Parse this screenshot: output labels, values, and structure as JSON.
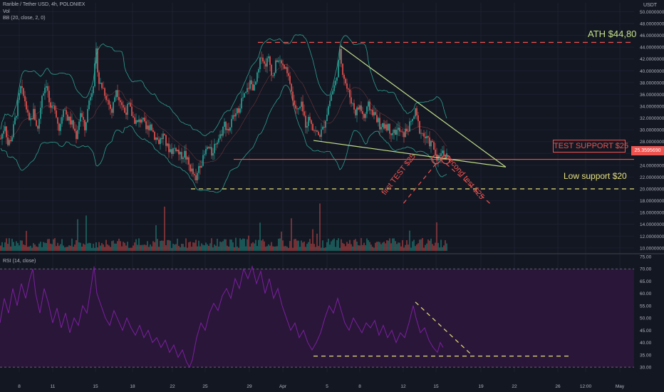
{
  "header": {
    "symbol_line": "Rarible / Tether USD, 4h, POLONIEX",
    "vol_label": "Vol",
    "bb_label": "BB (20, close, 2, 0)",
    "rsi_label": "RSI (14, close)",
    "currency": "USDT"
  },
  "annotations": {
    "ath": "ATH $44,80",
    "test_support": "TEST SUPPORT $25",
    "low_support": "Low support $20",
    "first_test": "first TEST $25",
    "second_test": "second test $25"
  },
  "price_badge": "25.3595690",
  "colors": {
    "background": "#131722",
    "up": "#26a69a",
    "down": "#ef5350",
    "bands": "#2e9e8f",
    "resistance": "#ef5350",
    "support_yellow": "#e6e07a",
    "trendline": "#c4e08a",
    "rsi_line": "#7b1fa2",
    "rsi_fill": "#2a1638"
  },
  "chart_data": [
    {
      "type": "candlestick",
      "title": "Rarible / Tether USD, 4h, POLONIEX",
      "x_ticks": [
        "8",
        "11",
        "15",
        "18",
        "22",
        "25",
        "29",
        "Apr",
        "5",
        "8",
        "12",
        "15",
        "19",
        "22",
        "26",
        "12:00",
        "May"
      ],
      "y_ticks": [
        "50.0000000",
        "48.0000000",
        "46.0000000",
        "44.0000000",
        "42.0000000",
        "40.0000000",
        "38.0000000",
        "36.0000000",
        "34.0000000",
        "32.0000000",
        "30.0000000",
        "28.0000000",
        "26.0000000",
        "24.0000000",
        "22.0000000",
        "20.0000000",
        "18.0000000",
        "16.0000000",
        "14.0000000",
        "12.0000000",
        "10.0000000"
      ],
      "ylim": [
        9.5,
        51.5
      ],
      "price_path": [
        {
          "x": 0,
          "y": 28.5
        },
        {
          "x": 6,
          "y": 31
        },
        {
          "x": 10,
          "y": 27.5
        },
        {
          "x": 16,
          "y": 29
        },
        {
          "x": 22,
          "y": 33
        },
        {
          "x": 28,
          "y": 37
        },
        {
          "x": 34,
          "y": 35
        },
        {
          "x": 40,
          "y": 31
        },
        {
          "x": 46,
          "y": 33
        },
        {
          "x": 52,
          "y": 30
        },
        {
          "x": 58,
          "y": 36
        },
        {
          "x": 64,
          "y": 38
        },
        {
          "x": 70,
          "y": 33
        },
        {
          "x": 76,
          "y": 34
        },
        {
          "x": 82,
          "y": 30
        },
        {
          "x": 88,
          "y": 34
        },
        {
          "x": 94,
          "y": 32
        },
        {
          "x": 100,
          "y": 31
        },
        {
          "x": 106,
          "y": 29
        },
        {
          "x": 112,
          "y": 33
        },
        {
          "x": 118,
          "y": 30
        },
        {
          "x": 124,
          "y": 35
        },
        {
          "x": 130,
          "y": 38
        },
        {
          "x": 134,
          "y": 43
        },
        {
          "x": 138,
          "y": 38
        },
        {
          "x": 144,
          "y": 37
        },
        {
          "x": 150,
          "y": 35
        },
        {
          "x": 156,
          "y": 33
        },
        {
          "x": 162,
          "y": 37
        },
        {
          "x": 168,
          "y": 35
        },
        {
          "x": 174,
          "y": 33
        },
        {
          "x": 180,
          "y": 34
        },
        {
          "x": 186,
          "y": 32
        },
        {
          "x": 192,
          "y": 31
        },
        {
          "x": 198,
          "y": 32
        },
        {
          "x": 204,
          "y": 30
        },
        {
          "x": 210,
          "y": 31
        },
        {
          "x": 216,
          "y": 29
        },
        {
          "x": 222,
          "y": 28
        },
        {
          "x": 228,
          "y": 29
        },
        {
          "x": 234,
          "y": 27
        },
        {
          "x": 240,
          "y": 26.5
        },
        {
          "x": 246,
          "y": 27
        },
        {
          "x": 252,
          "y": 25.5
        },
        {
          "x": 258,
          "y": 26
        },
        {
          "x": 264,
          "y": 24
        },
        {
          "x": 270,
          "y": 22.5
        },
        {
          "x": 274,
          "y": 21
        },
        {
          "x": 278,
          "y": 24
        },
        {
          "x": 284,
          "y": 25
        },
        {
          "x": 290,
          "y": 27
        },
        {
          "x": 296,
          "y": 26
        },
        {
          "x": 302,
          "y": 28
        },
        {
          "x": 308,
          "y": 29
        },
        {
          "x": 314,
          "y": 31
        },
        {
          "x": 320,
          "y": 30
        },
        {
          "x": 326,
          "y": 32
        },
        {
          "x": 332,
          "y": 33
        },
        {
          "x": 338,
          "y": 35
        },
        {
          "x": 344,
          "y": 36
        },
        {
          "x": 350,
          "y": 38
        },
        {
          "x": 356,
          "y": 37
        },
        {
          "x": 362,
          "y": 40
        },
        {
          "x": 366,
          "y": 43
        },
        {
          "x": 370,
          "y": 41
        },
        {
          "x": 376,
          "y": 42
        },
        {
          "x": 382,
          "y": 39
        },
        {
          "x": 388,
          "y": 42
        },
        {
          "x": 394,
          "y": 41
        },
        {
          "x": 400,
          "y": 40
        },
        {
          "x": 406,
          "y": 38
        },
        {
          "x": 410,
          "y": 35
        },
        {
          "x": 416,
          "y": 33
        },
        {
          "x": 422,
          "y": 34
        },
        {
          "x": 428,
          "y": 31
        },
        {
          "x": 434,
          "y": 32
        },
        {
          "x": 440,
          "y": 30
        },
        {
          "x": 446,
          "y": 29
        },
        {
          "x": 452,
          "y": 30
        },
        {
          "x": 458,
          "y": 33
        },
        {
          "x": 464,
          "y": 36
        },
        {
          "x": 470,
          "y": 38
        },
        {
          "x": 476,
          "y": 43
        },
        {
          "x": 480,
          "y": 40
        },
        {
          "x": 486,
          "y": 37
        },
        {
          "x": 492,
          "y": 35
        },
        {
          "x": 498,
          "y": 33
        },
        {
          "x": 504,
          "y": 34
        },
        {
          "x": 510,
          "y": 32
        },
        {
          "x": 516,
          "y": 34
        },
        {
          "x": 522,
          "y": 33
        },
        {
          "x": 528,
          "y": 32
        },
        {
          "x": 534,
          "y": 30
        },
        {
          "x": 540,
          "y": 31
        },
        {
          "x": 546,
          "y": 30
        },
        {
          "x": 552,
          "y": 29.5
        },
        {
          "x": 558,
          "y": 30
        },
        {
          "x": 564,
          "y": 29
        },
        {
          "x": 570,
          "y": 30
        },
        {
          "x": 576,
          "y": 31
        },
        {
          "x": 582,
          "y": 33
        },
        {
          "x": 588,
          "y": 30
        },
        {
          "x": 594,
          "y": 29
        },
        {
          "x": 600,
          "y": 28
        },
        {
          "x": 606,
          "y": 27.5
        },
        {
          "x": 610,
          "y": 26
        },
        {
          "x": 614,
          "y": 25.2
        },
        {
          "x": 618,
          "y": 26.5
        },
        {
          "x": 622,
          "y": 26
        },
        {
          "x": 626,
          "y": 25.4
        }
      ],
      "levels": {
        "ath": 44.8,
        "test_support": 25,
        "low_support": 20
      },
      "current_price": 25.359569
    },
    {
      "type": "line",
      "title": "RSI (14, close)",
      "y_ticks": [
        "75.00",
        "70.00",
        "65.00",
        "60.00",
        "55.00",
        "50.00",
        "45.00",
        "40.00",
        "35.00",
        "30.00"
      ],
      "ylim": [
        28,
        75
      ],
      "bands": [
        30,
        70
      ],
      "rsi_path": [
        {
          "x": 0,
          "y": 48
        },
        {
          "x": 6,
          "y": 58
        },
        {
          "x": 12,
          "y": 52
        },
        {
          "x": 18,
          "y": 62
        },
        {
          "x": 24,
          "y": 55
        },
        {
          "x": 30,
          "y": 64
        },
        {
          "x": 36,
          "y": 58
        },
        {
          "x": 42,
          "y": 66
        },
        {
          "x": 46,
          "y": 70
        },
        {
          "x": 50,
          "y": 60
        },
        {
          "x": 56,
          "y": 52
        },
        {
          "x": 62,
          "y": 62
        },
        {
          "x": 68,
          "y": 56
        },
        {
          "x": 74,
          "y": 48
        },
        {
          "x": 80,
          "y": 54
        },
        {
          "x": 86,
          "y": 46
        },
        {
          "x": 92,
          "y": 52
        },
        {
          "x": 98,
          "y": 44
        },
        {
          "x": 104,
          "y": 50
        },
        {
          "x": 110,
          "y": 47
        },
        {
          "x": 116,
          "y": 55
        },
        {
          "x": 122,
          "y": 52
        },
        {
          "x": 128,
          "y": 63
        },
        {
          "x": 132,
          "y": 71
        },
        {
          "x": 136,
          "y": 60
        },
        {
          "x": 142,
          "y": 55
        },
        {
          "x": 148,
          "y": 50
        },
        {
          "x": 154,
          "y": 47
        },
        {
          "x": 160,
          "y": 53
        },
        {
          "x": 166,
          "y": 49
        },
        {
          "x": 172,
          "y": 45
        },
        {
          "x": 178,
          "y": 50
        },
        {
          "x": 184,
          "y": 46
        },
        {
          "x": 190,
          "y": 43
        },
        {
          "x": 196,
          "y": 47
        },
        {
          "x": 202,
          "y": 42
        },
        {
          "x": 208,
          "y": 45
        },
        {
          "x": 214,
          "y": 40
        },
        {
          "x": 220,
          "y": 42
        },
        {
          "x": 226,
          "y": 38
        },
        {
          "x": 232,
          "y": 41
        },
        {
          "x": 238,
          "y": 36
        },
        {
          "x": 244,
          "y": 39
        },
        {
          "x": 250,
          "y": 34
        },
        {
          "x": 256,
          "y": 37
        },
        {
          "x": 262,
          "y": 32
        },
        {
          "x": 266,
          "y": 30
        },
        {
          "x": 270,
          "y": 33
        },
        {
          "x": 276,
          "y": 42
        },
        {
          "x": 282,
          "y": 48
        },
        {
          "x": 288,
          "y": 45
        },
        {
          "x": 294,
          "y": 52
        },
        {
          "x": 300,
          "y": 56
        },
        {
          "x": 306,
          "y": 53
        },
        {
          "x": 312,
          "y": 59
        },
        {
          "x": 318,
          "y": 62
        },
        {
          "x": 324,
          "y": 58
        },
        {
          "x": 330,
          "y": 66
        },
        {
          "x": 336,
          "y": 62
        },
        {
          "x": 342,
          "y": 70
        },
        {
          "x": 348,
          "y": 66
        },
        {
          "x": 354,
          "y": 71
        },
        {
          "x": 360,
          "y": 64
        },
        {
          "x": 366,
          "y": 69
        },
        {
          "x": 372,
          "y": 60
        },
        {
          "x": 378,
          "y": 66
        },
        {
          "x": 384,
          "y": 58
        },
        {
          "x": 390,
          "y": 62
        },
        {
          "x": 396,
          "y": 55
        },
        {
          "x": 402,
          "y": 50
        },
        {
          "x": 408,
          "y": 45
        },
        {
          "x": 414,
          "y": 48
        },
        {
          "x": 420,
          "y": 42
        },
        {
          "x": 426,
          "y": 45
        },
        {
          "x": 432,
          "y": 40
        },
        {
          "x": 438,
          "y": 37
        },
        {
          "x": 444,
          "y": 40
        },
        {
          "x": 450,
          "y": 44
        },
        {
          "x": 456,
          "y": 50
        },
        {
          "x": 462,
          "y": 55
        },
        {
          "x": 468,
          "y": 52
        },
        {
          "x": 474,
          "y": 58
        },
        {
          "x": 478,
          "y": 54
        },
        {
          "x": 484,
          "y": 48
        },
        {
          "x": 490,
          "y": 45
        },
        {
          "x": 496,
          "y": 50
        },
        {
          "x": 502,
          "y": 47
        },
        {
          "x": 508,
          "y": 44
        },
        {
          "x": 514,
          "y": 48
        },
        {
          "x": 520,
          "y": 46
        },
        {
          "x": 526,
          "y": 49
        },
        {
          "x": 532,
          "y": 43
        },
        {
          "x": 538,
          "y": 47
        },
        {
          "x": 544,
          "y": 42
        },
        {
          "x": 550,
          "y": 45
        },
        {
          "x": 556,
          "y": 40
        },
        {
          "x": 562,
          "y": 44
        },
        {
          "x": 568,
          "y": 42
        },
        {
          "x": 574,
          "y": 48
        },
        {
          "x": 580,
          "y": 55
        },
        {
          "x": 584,
          "y": 50
        },
        {
          "x": 590,
          "y": 44
        },
        {
          "x": 596,
          "y": 46
        },
        {
          "x": 602,
          "y": 41
        },
        {
          "x": 608,
          "y": 38
        },
        {
          "x": 614,
          "y": 36
        },
        {
          "x": 618,
          "y": 40
        },
        {
          "x": 622,
          "y": 38
        }
      ]
    }
  ]
}
